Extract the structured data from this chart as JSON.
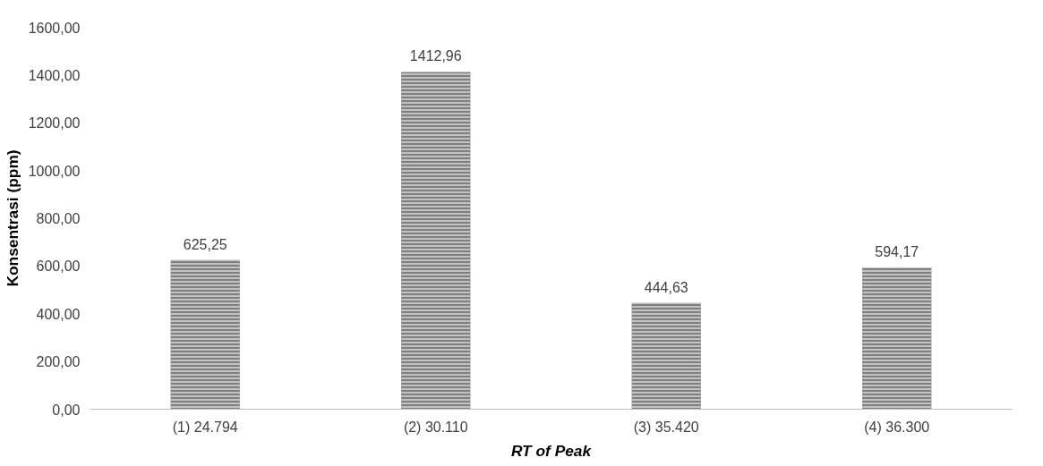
{
  "chart_data": {
    "type": "bar",
    "xlabel": "RT of Peak",
    "ylabel": "Konsentrasi (ppm)",
    "categories": [
      "(1) 24.794",
      "(2) 30.110",
      "(3) 35.420",
      "(4) 36.300"
    ],
    "values": [
      625.25,
      1412.96,
      444.63,
      594.17
    ],
    "value_labels": [
      "625,25",
      "1412,96",
      "444,63",
      "594,17"
    ],
    "color": "#7f7f7f",
    "ylim": [
      0,
      1600
    ],
    "yticks": [
      {
        "value": 0,
        "label": "0,00"
      },
      {
        "value": 200,
        "label": "200,00"
      },
      {
        "value": 400,
        "label": "400,00"
      },
      {
        "value": 600,
        "label": "600,00"
      },
      {
        "value": 800,
        "label": "800,00"
      },
      {
        "value": 1000,
        "label": "1000,00"
      },
      {
        "value": 1200,
        "label": "1200,00"
      },
      {
        "value": 1400,
        "label": "1400,00"
      },
      {
        "value": 1600,
        "label": "1600,00"
      }
    ],
    "grid": false
  }
}
